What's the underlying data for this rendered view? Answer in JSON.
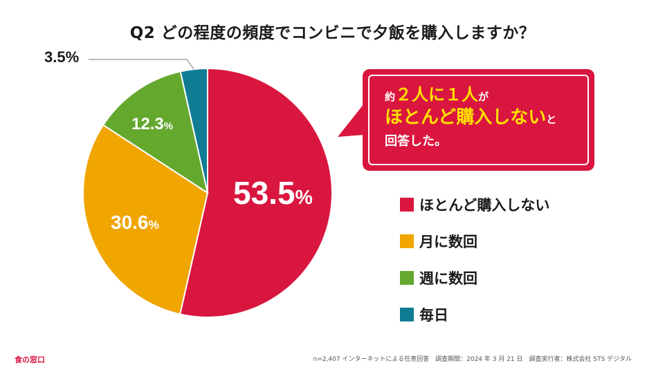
{
  "title": "Q2 どの程度の頻度でコンビニで夕飯を購入しますか？",
  "chart_data": {
    "type": "pie",
    "title": "Q2 どの程度の頻度でコンビニで夕飯を購入しますか？",
    "categories": [
      "ほとんど購入しない",
      "月に数回",
      "週に数回",
      "毎日"
    ],
    "values": [
      53.5,
      30.6,
      12.3,
      3.5
    ],
    "unit": "%",
    "colors": [
      "#d9163f",
      "#f0a500",
      "#64a82e",
      "#0f7c94"
    ],
    "labels": [
      {
        "value": "53.5",
        "pct": "%"
      },
      {
        "value": "30.6",
        "pct": "%"
      },
      {
        "value": "12.3",
        "pct": "%"
      },
      {
        "value": "3.5",
        "pct": "%"
      }
    ],
    "legend_position": "right",
    "start": "12 o'clock",
    "direction": "clockwise"
  },
  "callout": {
    "line1_pre": "約",
    "line1_hl": "２人に１人",
    "line1_post": "が",
    "line2_hl": "ほとんど購入しない",
    "line2_post": "と",
    "line3": "回答した。"
  },
  "legend": [
    {
      "label": "ほとんど購入しない",
      "color": "#d9163f"
    },
    {
      "label": "月に数回",
      "color": "#f0a500"
    },
    {
      "label": "週に数回",
      "color": "#64a82e"
    },
    {
      "label": "毎日",
      "color": "#0f7c94"
    }
  ],
  "footer": {
    "logo": "食の窓口",
    "note": "n=2,407 インターネットによる任意回答　調査期間：2024 年 3 月 21 日　調査実行者：株式会社 STS デジタル"
  }
}
